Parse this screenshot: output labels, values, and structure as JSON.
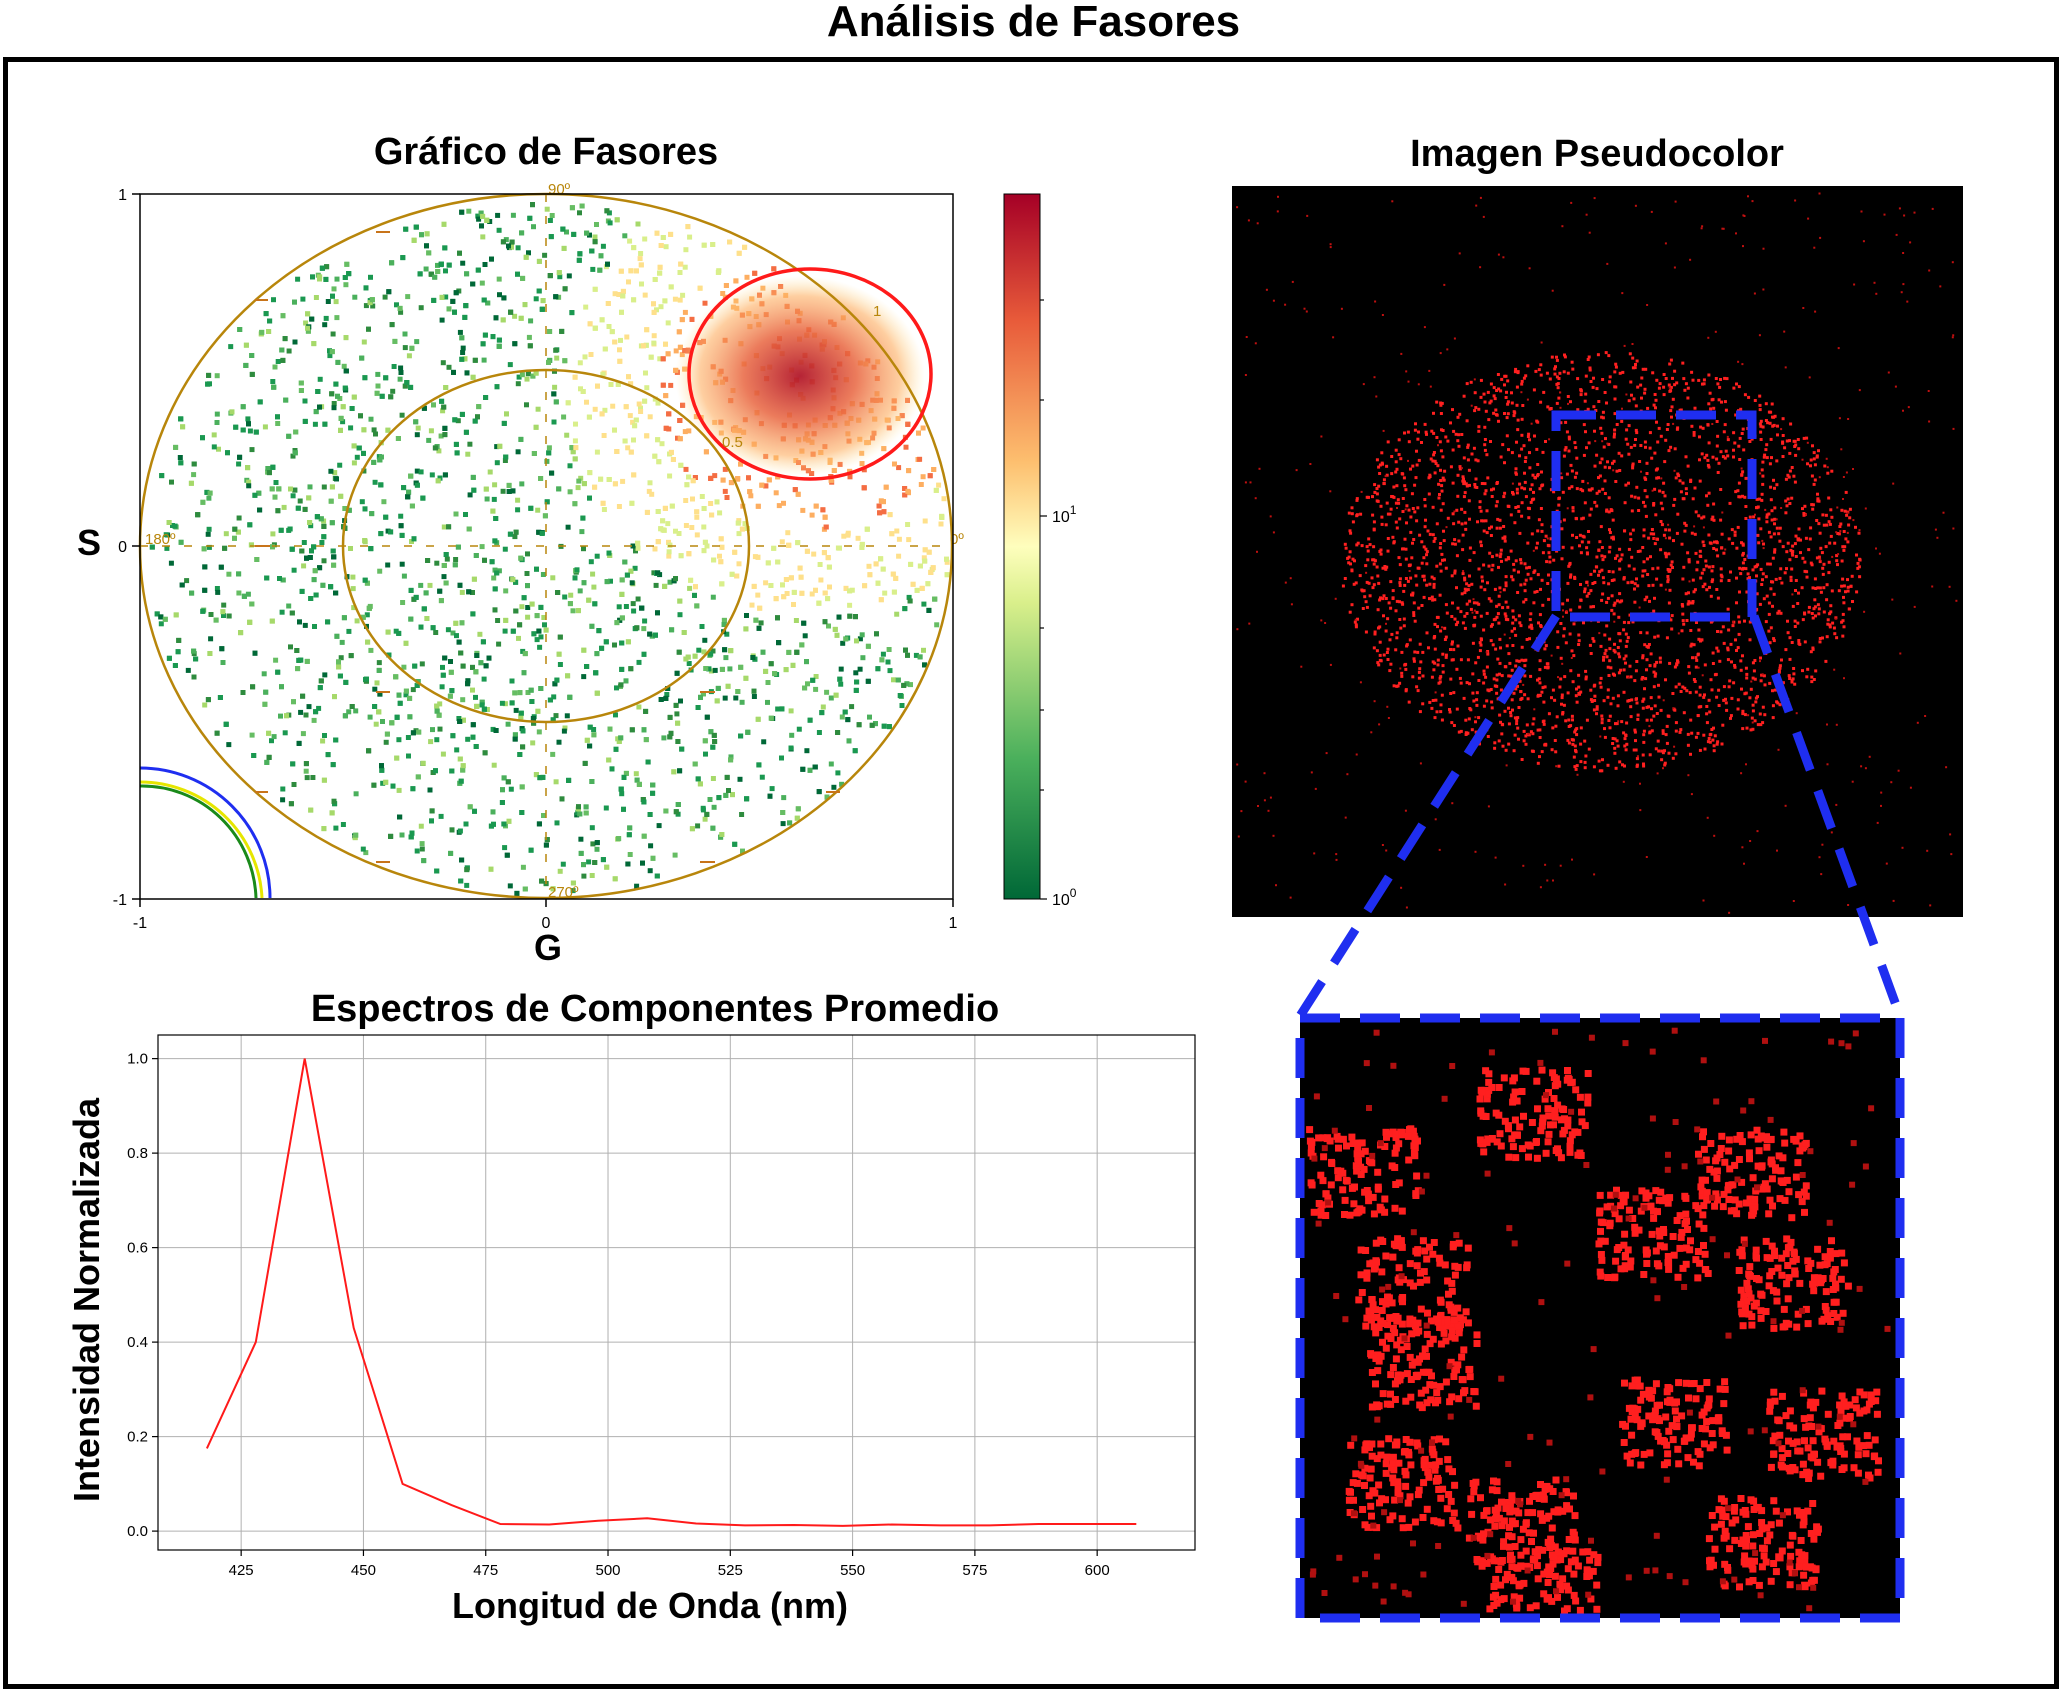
{
  "title": "Análisis de Fasores",
  "colors": {
    "frame": "#000000",
    "accent_red": "#ff1a1a",
    "accent_blue": "#1f2ef0",
    "unit_circle": "#b8860b",
    "image_bg": "#000000"
  },
  "phasor_plot": {
    "title": "Gráfico de Fasores",
    "xlabel": "G",
    "ylabel": "S",
    "x_ticks": [
      "-1",
      "0",
      "1"
    ],
    "y_ticks": [
      "1",
      "0",
      "-1"
    ],
    "angle_labels": [
      "90º",
      "0º",
      "270º",
      "180º"
    ],
    "harmonic_labels": [
      "1",
      "0.5"
    ],
    "colorbar": {
      "tick_labels": [
        "10^1",
        "10^0"
      ],
      "colormap": "RdYlGn_r",
      "scale": "log"
    }
  },
  "pseudocolor": {
    "title": "Imagen Pseudocolor"
  },
  "chart_data": [
    {
      "type": "heatmap",
      "title": "Gráfico de Fasores",
      "xlabel": "G",
      "ylabel": "S",
      "xlim": [
        -1,
        1
      ],
      "ylim": [
        -1,
        1
      ],
      "colorbar_scale": "log",
      "colorbar_ticks": [
        "10^0",
        "10^1"
      ],
      "selection_circle": {
        "center": [
          0.65,
          0.5
        ],
        "radius": 0.3,
        "color": "#ff1a1a"
      },
      "max_density_location": [
        0.7,
        0.5
      ]
    },
    {
      "type": "line",
      "title": "Espectros de Componentes Promedio",
      "xlabel": "Longitud de Onda (nm)",
      "ylabel": "Intensidad Normalizada",
      "x": [
        418,
        428,
        438,
        448,
        458,
        468,
        478,
        488,
        498,
        508,
        518,
        528,
        538,
        548,
        558,
        568,
        578,
        588,
        598,
        608
      ],
      "series": [
        {
          "color": "#ff1a1a",
          "values": [
            0.175,
            0.4,
            1.0,
            0.43,
            0.1,
            0.055,
            0.015,
            0.014,
            0.022,
            0.027,
            0.016,
            0.012,
            0.013,
            0.011,
            0.014,
            0.012,
            0.012,
            0.015,
            0.015,
            0.015
          ]
        }
      ],
      "x_ticks": [
        425,
        450,
        475,
        500,
        525,
        550,
        575,
        600
      ],
      "y_ticks": [
        0.0,
        0.2,
        0.4,
        0.6,
        0.8,
        1.0
      ],
      "xlim": [
        408,
        620
      ],
      "ylim": [
        -0.04,
        1.05
      ],
      "grid": true
    }
  ]
}
